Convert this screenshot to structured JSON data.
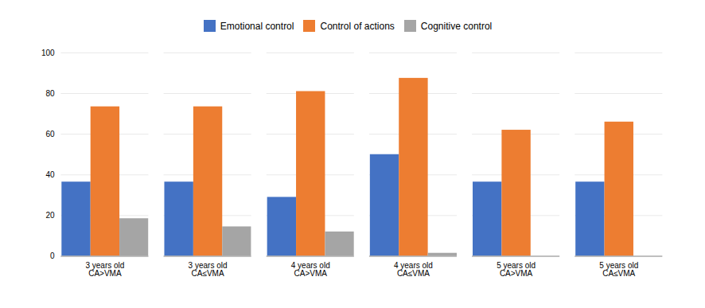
{
  "chart_data": {
    "type": "bar",
    "categories": [
      "3 years old\nCA>VMA",
      "3 years old\nCA≤VMA",
      "4 years old\nCA>VMA",
      "4 years old\nCA≤VMA",
      "5 years old\nCA>VMA",
      "5 years old\nCA≤VMA"
    ],
    "series": [
      {
        "name": "Emotional control",
        "color": "#4472C4",
        "values": [
          36.5,
          36.5,
          29,
          50,
          36.5,
          36.5
        ]
      },
      {
        "name": "Control of actions",
        "color": "#ED7D31",
        "values": [
          73.5,
          73.5,
          81,
          87.5,
          62,
          66
        ]
      },
      {
        "name": "Cognitive control",
        "color": "#A5A5A5",
        "values": [
          18.5,
          14.5,
          12,
          1.5,
          0,
          0
        ]
      }
    ],
    "ylim": [
      0,
      100
    ],
    "yticks": [
      0,
      20,
      40,
      60,
      80,
      100
    ],
    "grid": true,
    "legend": "top"
  }
}
